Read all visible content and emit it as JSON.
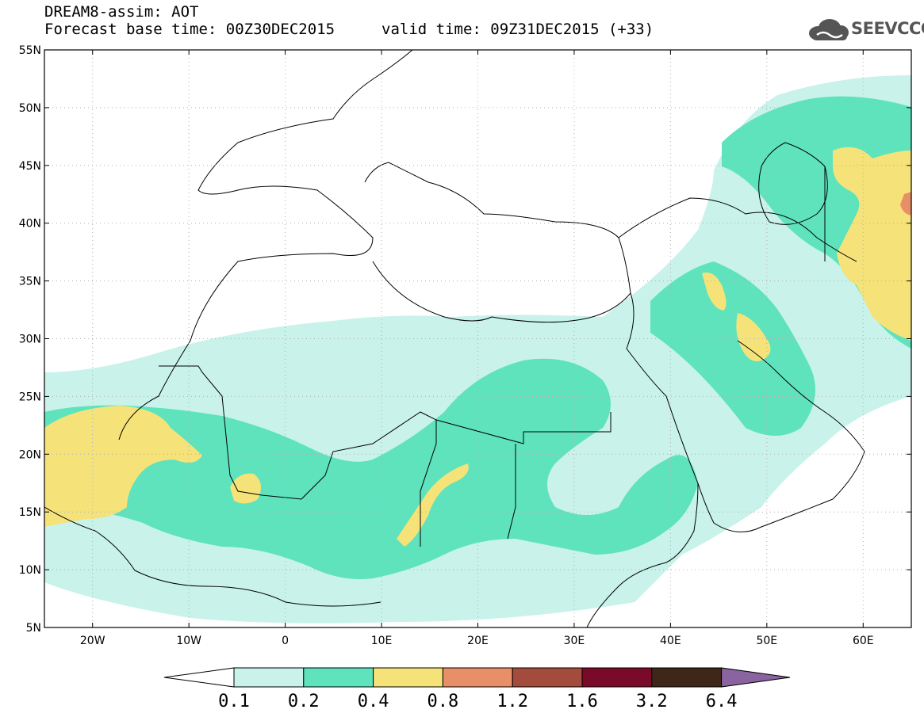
{
  "header": {
    "title_line1": "DREAM8-assim: AOT",
    "title_line2": "Forecast base time: 00Z30DEC2015",
    "valid_time": "valid time: 09Z31DEC2015 (+33)",
    "logo_text": "SEEVCCC"
  },
  "map": {
    "lon_range": [
      -25,
      65
    ],
    "lat_range": [
      5,
      55
    ],
    "lat_labels": [
      "55N",
      "50N",
      "45N",
      "40N",
      "35N",
      "30N",
      "25N",
      "20N",
      "15N",
      "10N",
      "5N"
    ],
    "lon_labels": [
      "20W",
      "10W",
      "0",
      "10E",
      "20E",
      "30E",
      "40E",
      "50E",
      "60E"
    ],
    "lat_values": [
      55,
      50,
      45,
      40,
      35,
      30,
      25,
      20,
      15,
      10,
      5
    ],
    "lon_values": [
      -20,
      -10,
      0,
      10,
      20,
      30,
      40,
      50,
      60
    ]
  },
  "colorbar": {
    "labels": [
      "0.1",
      "0.2",
      "0.4",
      "0.8",
      "1.2",
      "1.6",
      "3.2",
      "6.4"
    ],
    "colors": [
      "#ffffff",
      "#c8f2ea",
      "#5ee3bd",
      "#f5e37a",
      "#e88f68",
      "#a34c3e",
      "#7a0a2a",
      "#3e2718",
      "#8a64a0"
    ]
  }
}
